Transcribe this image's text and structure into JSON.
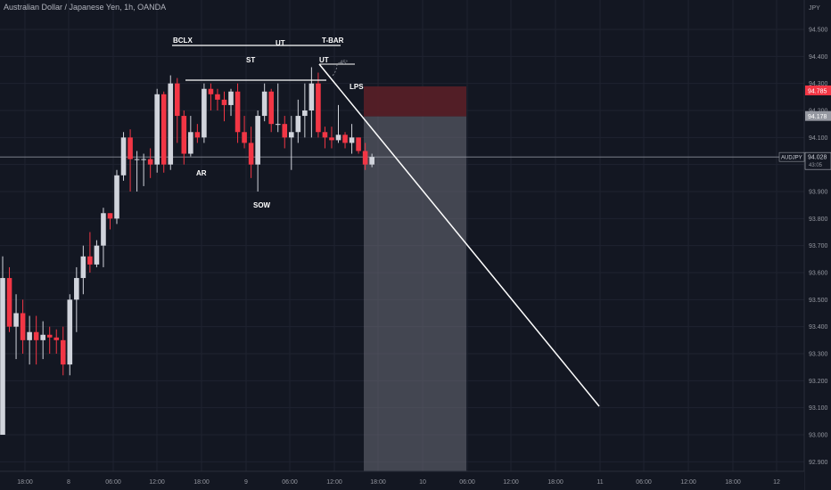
{
  "header": {
    "title": "Australian Dollar / Japanese Yen, 1h, OANDA",
    "currency": "JPY"
  },
  "price_badges": {
    "target": "94.785",
    "stop": "94.178",
    "symbol": "AUDJPY",
    "last": "94.028",
    "countdown": "43:05"
  },
  "annotations": {
    "bclx": "BCLX",
    "ut1": "UT",
    "tbar": "T-BAR",
    "st": "ST",
    "ut2": "UT",
    "angle": "-45°",
    "lps": "LPS",
    "ar": "AR",
    "sow": "SOW"
  },
  "chart_data": {
    "type": "candlestick",
    "title": "Australian Dollar / Japanese Yen, 1h, OANDA",
    "ylim": [
      92.88,
      94.58
    ],
    "y_ticks": [
      "94.500",
      "94.400",
      "94.300",
      "94.200",
      "94.100",
      "94.000",
      "93.900",
      "93.800",
      "93.700",
      "93.600",
      "93.500",
      "93.400",
      "93.300",
      "93.200",
      "93.100",
      "93.000",
      "92.900"
    ],
    "x_ticks": [
      "18:00",
      "8",
      "06:00",
      "12:00",
      "18:00",
      "9",
      "06:00",
      "12:00",
      "18:00",
      "10",
      "06:00",
      "12:00",
      "18:00",
      "11",
      "06:00",
      "12:00",
      "18:00",
      "12"
    ],
    "candles": [
      {
        "o": 93.0,
        "h": 93.66,
        "l": 93.0,
        "c": 93.58
      },
      {
        "o": 93.58,
        "h": 93.62,
        "l": 93.38,
        "c": 93.4
      },
      {
        "o": 93.4,
        "h": 93.52,
        "l": 93.28,
        "c": 93.45
      },
      {
        "o": 93.45,
        "h": 93.5,
        "l": 93.3,
        "c": 93.35
      },
      {
        "o": 93.35,
        "h": 93.44,
        "l": 93.26,
        "c": 93.38
      },
      {
        "o": 93.38,
        "h": 93.44,
        "l": 93.26,
        "c": 93.35
      },
      {
        "o": 93.35,
        "h": 93.42,
        "l": 93.28,
        "c": 93.37
      },
      {
        "o": 93.37,
        "h": 93.4,
        "l": 93.3,
        "c": 93.36
      },
      {
        "o": 93.36,
        "h": 93.39,
        "l": 93.3,
        "c": 93.35
      },
      {
        "o": 93.35,
        "h": 93.4,
        "l": 93.22,
        "c": 93.26
      },
      {
        "o": 93.26,
        "h": 93.52,
        "l": 93.22,
        "c": 93.5
      },
      {
        "o": 93.5,
        "h": 93.62,
        "l": 93.38,
        "c": 93.58
      },
      {
        "o": 93.58,
        "h": 93.7,
        "l": 93.52,
        "c": 93.66
      },
      {
        "o": 93.66,
        "h": 93.75,
        "l": 93.6,
        "c": 93.63
      },
      {
        "o": 93.63,
        "h": 93.72,
        "l": 93.62,
        "c": 93.7
      },
      {
        "o": 93.7,
        "h": 93.84,
        "l": 93.62,
        "c": 93.82
      },
      {
        "o": 93.82,
        "h": 93.82,
        "l": 93.76,
        "c": 93.8
      },
      {
        "o": 93.8,
        "h": 93.98,
        "l": 93.78,
        "c": 93.96
      },
      {
        "o": 93.96,
        "h": 94.12,
        "l": 93.94,
        "c": 94.1
      },
      {
        "o": 94.1,
        "h": 94.13,
        "l": 93.9,
        "c": 94.02
      },
      {
        "o": 94.02,
        "h": 94.05,
        "l": 93.9,
        "c": 94.02
      },
      {
        "o": 94.02,
        "h": 94.04,
        "l": 93.92,
        "c": 94.02
      },
      {
        "o": 94.02,
        "h": 94.06,
        "l": 93.95,
        "c": 94.0
      },
      {
        "o": 94.0,
        "h": 94.28,
        "l": 93.97,
        "c": 94.26
      },
      {
        "o": 94.26,
        "h": 94.27,
        "l": 93.97,
        "c": 94.0
      },
      {
        "o": 94.0,
        "h": 94.33,
        "l": 93.98,
        "c": 94.3
      },
      {
        "o": 94.3,
        "h": 94.32,
        "l": 94.08,
        "c": 94.18
      },
      {
        "o": 94.18,
        "h": 94.2,
        "l": 94.0,
        "c": 94.04
      },
      {
        "o": 94.04,
        "h": 94.18,
        "l": 94.03,
        "c": 94.12
      },
      {
        "o": 94.12,
        "h": 94.15,
        "l": 94.08,
        "c": 94.1
      },
      {
        "o": 94.1,
        "h": 94.3,
        "l": 94.08,
        "c": 94.28
      },
      {
        "o": 94.28,
        "h": 94.3,
        "l": 94.2,
        "c": 94.26
      },
      {
        "o": 94.26,
        "h": 94.28,
        "l": 94.2,
        "c": 94.24
      },
      {
        "o": 94.24,
        "h": 94.27,
        "l": 94.16,
        "c": 94.22
      },
      {
        "o": 94.22,
        "h": 94.28,
        "l": 94.18,
        "c": 94.27
      },
      {
        "o": 94.27,
        "h": 94.3,
        "l": 94.08,
        "c": 94.12
      },
      {
        "o": 94.12,
        "h": 94.18,
        "l": 94.06,
        "c": 94.08
      },
      {
        "o": 94.08,
        "h": 94.14,
        "l": 93.95,
        "c": 94.0
      },
      {
        "o": 94.0,
        "h": 94.2,
        "l": 93.9,
        "c": 94.18
      },
      {
        "o": 94.18,
        "h": 94.3,
        "l": 94.16,
        "c": 94.27
      },
      {
        "o": 94.27,
        "h": 94.28,
        "l": 94.12,
        "c": 94.15
      },
      {
        "o": 94.15,
        "h": 94.3,
        "l": 94.12,
        "c": 94.15
      },
      {
        "o": 94.15,
        "h": 94.18,
        "l": 94.06,
        "c": 94.1
      },
      {
        "o": 94.1,
        "h": 94.18,
        "l": 93.98,
        "c": 94.12
      },
      {
        "o": 94.12,
        "h": 94.24,
        "l": 94.08,
        "c": 94.18
      },
      {
        "o": 94.18,
        "h": 94.3,
        "l": 94.1,
        "c": 94.2
      },
      {
        "o": 94.2,
        "h": 94.36,
        "l": 94.1,
        "c": 94.3
      },
      {
        "o": 94.3,
        "h": 94.34,
        "l": 94.1,
        "c": 94.12
      },
      {
        "o": 94.12,
        "h": 94.14,
        "l": 94.06,
        "c": 94.1
      },
      {
        "o": 94.1,
        "h": 94.14,
        "l": 94.06,
        "c": 94.09
      },
      {
        "o": 94.09,
        "h": 94.22,
        "l": 94.08,
        "c": 94.11
      },
      {
        "o": 94.11,
        "h": 94.12,
        "l": 94.06,
        "c": 94.08
      },
      {
        "o": 94.08,
        "h": 94.15,
        "l": 94.04,
        "c": 94.1
      },
      {
        "o": 94.1,
        "h": 94.1,
        "l": 94.04,
        "c": 94.05
      },
      {
        "o": 94.05,
        "h": 94.08,
        "l": 93.98,
        "c": 94.0
      },
      {
        "o": 94.0,
        "h": 94.04,
        "l": 93.99,
        "c": 94.028
      }
    ]
  }
}
